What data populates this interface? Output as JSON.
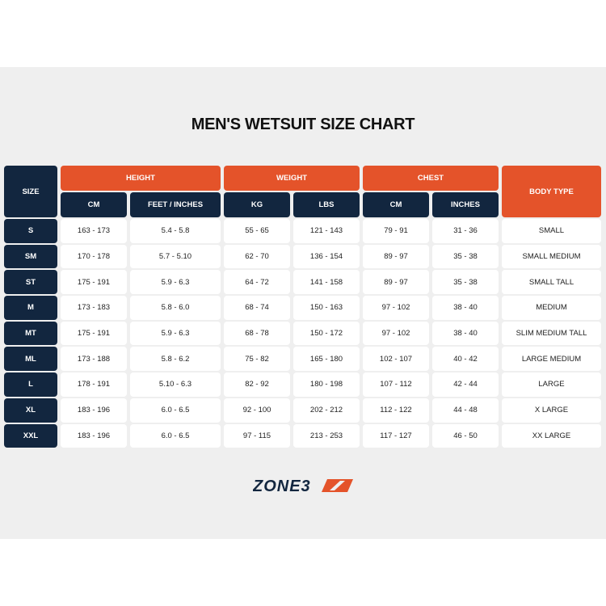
{
  "title": "MEN'S WETSUIT SIZE CHART",
  "headers": {
    "size": "SIZE",
    "height": "HEIGHT",
    "weight": "WEIGHT",
    "chest": "CHEST",
    "body_type": "BODY TYPE",
    "sub": [
      "CM",
      "FEET / INCHES",
      "KG",
      "LBS",
      "CM",
      "INCHES"
    ]
  },
  "rows": [
    [
      "S",
      "163 - 173",
      "5.4 - 5.8",
      "55 - 65",
      "121 - 143",
      "79 - 91",
      "31 - 36",
      "SMALL"
    ],
    [
      "SM",
      "170 - 178",
      "5.7 - 5.10",
      "62 - 70",
      "136 - 154",
      "89 - 97",
      "35 - 38",
      "SMALL MEDIUM"
    ],
    [
      "ST",
      "175 - 191",
      "5.9 - 6.3",
      "64 - 72",
      "141 - 158",
      "89 - 97",
      "35 - 38",
      "SMALL TALL"
    ],
    [
      "M",
      "173 - 183",
      "5.8 - 6.0",
      "68 - 74",
      "150 - 163",
      "97 - 102",
      "38 - 40",
      "MEDIUM"
    ],
    [
      "MT",
      "175 - 191",
      "5.9 - 6.3",
      "68 - 78",
      "150 - 172",
      "97 - 102",
      "38 - 40",
      "SLIM MEDIUM TALL"
    ],
    [
      "ML",
      "173 - 188",
      "5.8 - 6.2",
      "75 - 82",
      "165 - 180",
      "102 - 107",
      "40 - 42",
      "LARGE MEDIUM"
    ],
    [
      "L",
      "178 - 191",
      "5.10 - 6.3",
      "82 - 92",
      "180 - 198",
      "107 - 112",
      "42 - 44",
      "LARGE"
    ],
    [
      "XL",
      "183 - 196",
      "6.0 - 6.5",
      "92 - 100",
      "202 - 212",
      "112 - 122",
      "44 - 48",
      "X LARGE"
    ],
    [
      "XXL",
      "183 - 196",
      "6.0 - 6.5",
      "97 - 115",
      "213 - 253",
      "117 - 127",
      "46 - 50",
      "XX LARGE"
    ]
  ],
  "logo": "ZONE3",
  "colors": {
    "navy": "#12263f",
    "orange": "#e4532a"
  }
}
